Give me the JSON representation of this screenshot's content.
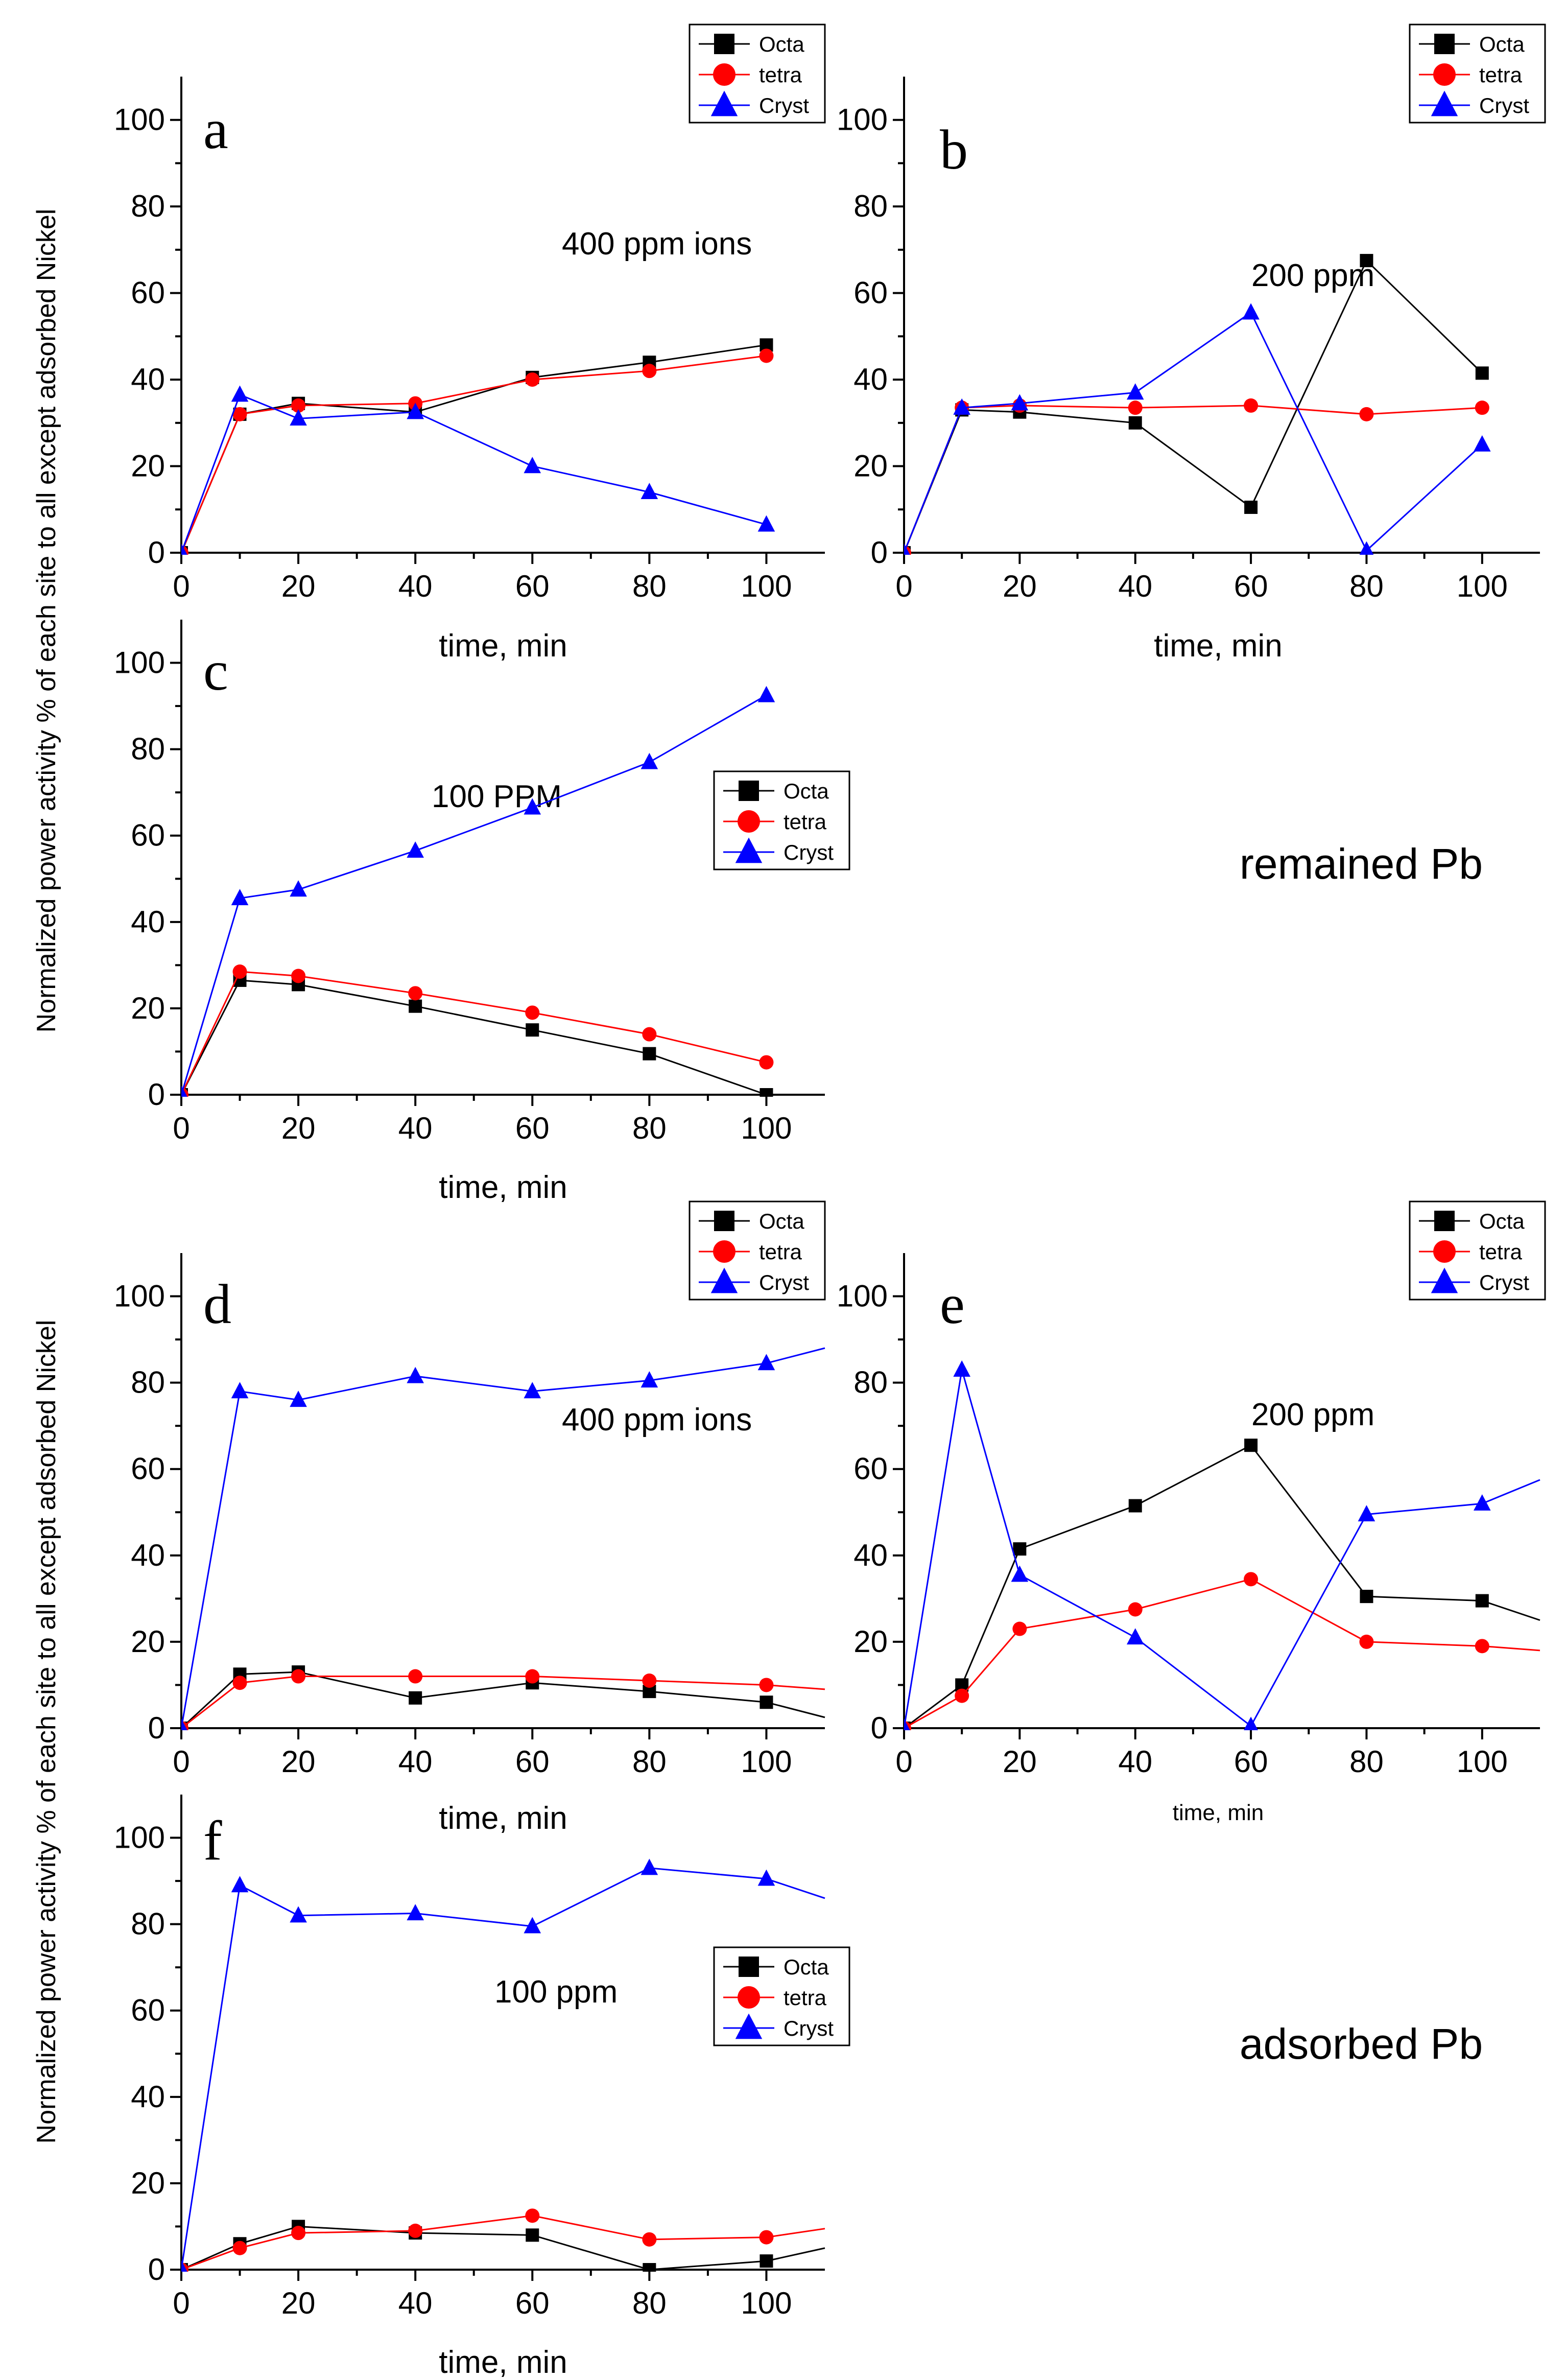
{
  "figure": {
    "ylabel_top": "Normalized power activity  % of  each site to all except adsorbed Nickel",
    "ylabel_bottom": "Normalized power activity  % of  each site to all except adsorbed Nickel",
    "group_top_label": "remained Pb",
    "group_bottom_label": "adsorbed Pb"
  },
  "colors": {
    "octa": "#000000",
    "tetra": "#ff0000",
    "cryst": "#0000ff"
  },
  "chart_data": [
    {
      "id": "a",
      "type": "line",
      "panel_letter": "a",
      "annotation": "400 ppm ions",
      "xlabel": "time, min",
      "ylabel": "",
      "xlim": [
        0,
        110
      ],
      "ylim": [
        0,
        110
      ],
      "x": [
        0,
        10,
        20,
        40,
        60,
        80,
        100
      ],
      "series": [
        {
          "name": "Octa",
          "marker": "square",
          "color": "#000000",
          "values": [
            0,
            32,
            34.5,
            32.5,
            40.5,
            44,
            48
          ]
        },
        {
          "name": "tetra",
          "marker": "circle",
          "color": "#ff0000",
          "values": [
            0,
            32,
            34,
            34.5,
            40,
            42,
            45.5
          ]
        },
        {
          "name": "Cryst",
          "marker": "triangle",
          "color": "#0000ff",
          "values": [
            0,
            36.5,
            31,
            32.5,
            20,
            14,
            6.5
          ]
        }
      ],
      "legend": [
        "Octa",
        "tetra",
        "Cryst"
      ]
    },
    {
      "id": "b",
      "type": "line",
      "panel_letter": "b",
      "annotation": "200 ppm",
      "xlabel": "time, min",
      "ylabel": "",
      "xlim": [
        0,
        110
      ],
      "ylim": [
        0,
        110
      ],
      "x": [
        0,
        10,
        20,
        40,
        60,
        80,
        100
      ],
      "series": [
        {
          "name": "Octa",
          "marker": "square",
          "color": "#000000",
          "values": [
            0,
            33,
            32.5,
            30,
            10.5,
            67.5,
            41.5
          ]
        },
        {
          "name": "tetra",
          "marker": "circle",
          "color": "#ff0000",
          "values": [
            0,
            33.5,
            34,
            33.5,
            34,
            32,
            33.5
          ]
        },
        {
          "name": "Cryst",
          "marker": "triangle",
          "color": "#0000ff",
          "values": [
            0,
            33.5,
            34.5,
            37,
            55.5,
            0.5,
            25
          ]
        }
      ],
      "legend": [
        "Octa",
        "tetra",
        "Cryst"
      ]
    },
    {
      "id": "c",
      "type": "line",
      "panel_letter": "c",
      "annotation": "100 PPM",
      "xlabel": "time, min",
      "ylabel": "",
      "xlim": [
        0,
        110
      ],
      "ylim": [
        0,
        110
      ],
      "x": [
        0,
        10,
        20,
        40,
        60,
        80,
        100
      ],
      "series": [
        {
          "name": "Octa",
          "marker": "square",
          "color": "#000000",
          "values": [
            0,
            26.5,
            25.5,
            20.5,
            15,
            9.5,
            0
          ]
        },
        {
          "name": "tetra",
          "marker": "circle",
          "color": "#ff0000",
          "values": [
            0,
            28.5,
            27.5,
            23.5,
            19,
            14,
            7.5
          ]
        },
        {
          "name": "Cryst",
          "marker": "triangle",
          "color": "#0000ff",
          "values": [
            0,
            45.5,
            47.5,
            56.5,
            66.5,
            77,
            92.5
          ]
        }
      ],
      "legend": [
        "Octa",
        "tetra",
        "Cryst"
      ]
    },
    {
      "id": "d",
      "type": "line",
      "panel_letter": "d",
      "annotation": "400 ppm ions",
      "xlabel": "time, min",
      "ylabel": "",
      "xlim": [
        0,
        110
      ],
      "ylim": [
        0,
        110
      ],
      "x": [
        0,
        10,
        20,
        40,
        60,
        80,
        100,
        110
      ],
      "series": [
        {
          "name": "Octa",
          "marker": "square",
          "color": "#000000",
          "values": [
            0,
            12.5,
            13,
            7,
            10.5,
            8.5,
            6,
            2.5
          ]
        },
        {
          "name": "tetra",
          "marker": "circle",
          "color": "#ff0000",
          "values": [
            0,
            10.5,
            12,
            12,
            12,
            11,
            10,
            9
          ]
        },
        {
          "name": "Cryst",
          "marker": "triangle",
          "color": "#0000ff",
          "values": [
            0,
            78,
            76,
            81.5,
            78,
            80.5,
            84.5,
            88
          ]
        }
      ],
      "legend": [
        "Octa",
        "tetra",
        "Cryst"
      ]
    },
    {
      "id": "e",
      "type": "line",
      "panel_letter": "e",
      "annotation": "200 ppm",
      "xlabel": "time, min",
      "ylabel": "",
      "xlim": [
        0,
        110
      ],
      "ylim": [
        0,
        110
      ],
      "x": [
        0,
        10,
        20,
        40,
        60,
        80,
        100,
        110
      ],
      "series": [
        {
          "name": "Octa",
          "marker": "square",
          "color": "#000000",
          "values": [
            0,
            10,
            41.5,
            51.5,
            65.5,
            30.5,
            29.5,
            25
          ]
        },
        {
          "name": "tetra",
          "marker": "circle",
          "color": "#ff0000",
          "values": [
            0,
            7.5,
            23,
            27.5,
            34.5,
            20,
            19,
            18
          ]
        },
        {
          "name": "Cryst",
          "marker": "triangle",
          "color": "#0000ff",
          "values": [
            0,
            83,
            35.5,
            21,
            0.5,
            49.5,
            52,
            57.5
          ]
        }
      ],
      "legend": [
        "Octa",
        "tetra",
        "Cryst"
      ]
    },
    {
      "id": "f",
      "type": "line",
      "panel_letter": "f",
      "annotation": "100  ppm",
      "xlabel": "time, min",
      "ylabel": "",
      "xlim": [
        0,
        110
      ],
      "ylim": [
        0,
        110
      ],
      "x": [
        0,
        10,
        20,
        40,
        60,
        80,
        100,
        110
      ],
      "series": [
        {
          "name": "Octa",
          "marker": "square",
          "color": "#000000",
          "values": [
            0,
            6,
            10,
            8.5,
            8,
            0,
            2,
            5
          ]
        },
        {
          "name": "tetra",
          "marker": "circle",
          "color": "#ff0000",
          "values": [
            0,
            5,
            8.5,
            9,
            12.5,
            7,
            7.5,
            9.5
          ]
        },
        {
          "name": "Cryst",
          "marker": "triangle",
          "color": "#0000ff",
          "values": [
            0,
            89,
            82,
            82.5,
            79.5,
            93,
            90.5,
            86
          ]
        }
      ],
      "legend": [
        "Octa",
        "tetra",
        "Cryst"
      ]
    }
  ]
}
